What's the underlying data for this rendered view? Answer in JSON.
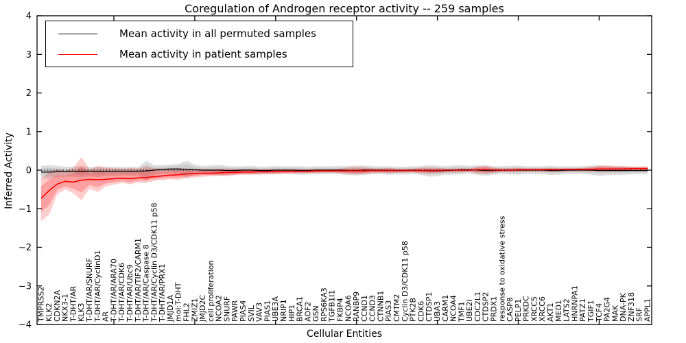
{
  "figure": {
    "title": "Coregulation of Androgen receptor activity -- 259 samples",
    "background": "#ffffff"
  },
  "chart_data": {
    "type": "line",
    "title": "Coregulation of Androgen receptor activity -- 259 samples",
    "xlabel": "Cellular Entities",
    "ylabel": "Inferred Activity",
    "ylim": [
      -4,
      4
    ],
    "yticks": [
      4,
      3,
      2,
      1,
      0,
      -1,
      -2,
      -3,
      -4
    ],
    "xtick_interval": 10,
    "grid": false,
    "legend": {
      "position": "upper left",
      "entries": [
        {
          "label": "Mean activity in all permuted samples",
          "color": "#000000"
        },
        {
          "label": "Mean activity in patient samples",
          "color": "#ff0000"
        }
      ]
    },
    "zero_line": {
      "style": "dotted",
      "color": "#000000",
      "y": 0
    },
    "colors": {
      "permuted_line": "#000000",
      "permuted_band": "#d9d9d9",
      "patient_line": "#ff0000",
      "patient_band": "#f6a9a5",
      "axes": "#000000"
    },
    "categories": [
      "TMPRSS2",
      "KLK2",
      "CDKN2A",
      "NKX3-1",
      "T-DHT/AR",
      "KLK3",
      "T-DHT/AR/SNURF",
      "T-DHT/AR/CyclinD1",
      "AR",
      "T-DHT/AR/ARA70",
      "T-DHT/AR/CDK6",
      "T-DHT/AR/Ubc9",
      "T-DHT/AR/TIF2/CARM1",
      "T-DHT/AR/Caspase 8",
      "T-DHT/AR/Cyclin D3/CDK11 p58",
      "T-DHT/AR/PRX1",
      "JMJD1A",
      "mol:T-DHT",
      "FHL2",
      "ZMIZ1",
      "JMJD2C",
      "cell proliferation",
      "NCOA2",
      "SNURF",
      "PAWR",
      "PIAS4",
      "SVIL",
      "VAV3",
      "PIAS1",
      "UBE3A",
      "NRIP1",
      "HIP1",
      "BRCA1",
      "AOF2",
      "GSN",
      "RPS6KA3",
      "TGFB1I1",
      "FKBP4",
      "NCOA6",
      "RANBP9",
      "CCND1",
      "CCND3",
      "CTNNB1",
      "PIAS3",
      "CMTM2",
      "Cyclin D3/CDK11 p58",
      "PTK2B",
      "CDK6",
      "CTDSP1",
      "UBA3",
      "CARM1",
      "NCOA4",
      "TMF1",
      "UBE2I",
      "CDC2L1",
      "CTDSP2",
      "PRDX1",
      "response to oxidative stress",
      "CASP8",
      "PELP1",
      "PRKDC",
      "XRCC5",
      "XRCC6",
      "AKT1",
      "MED1",
      "LATS2",
      "HNRNPA1",
      "PATZ1",
      "TGIF1",
      "TCF4",
      "PA2G4",
      "MAK",
      "DNA-PK",
      "ZNF318",
      "SRF",
      "APPL1"
    ],
    "series": [
      {
        "name": "Mean activity in all permuted samples",
        "color": "#000000",
        "values": [
          -0.05,
          -0.05,
          -0.04,
          -0.04,
          -0.04,
          -0.04,
          -0.04,
          -0.04,
          -0.03,
          -0.03,
          -0.03,
          -0.03,
          -0.03,
          -0.02,
          0.0,
          0.02,
          0.03,
          0.03,
          0.02,
          0.01,
          0.0,
          0.0,
          0.0,
          -0.01,
          -0.01,
          0.0,
          0.0,
          -0.01,
          -0.01,
          0.0,
          0.0,
          0.0,
          -0.01,
          -0.01,
          0.0,
          0.0,
          0.0,
          0.0,
          -0.01,
          -0.01,
          0.0,
          0.0,
          0.0,
          -0.01,
          -0.01,
          -0.01,
          0.0,
          -0.01,
          -0.02,
          -0.02,
          -0.01,
          0.0,
          0.01,
          0.01,
          0.0,
          -0.01,
          -0.01,
          0.0,
          0.0,
          0.0,
          0.0,
          0.0,
          0.0,
          -0.01,
          -0.01,
          0.0,
          0.0,
          0.0,
          0.0,
          -0.01,
          -0.01,
          -0.01,
          -0.01,
          -0.01,
          -0.01,
          -0.01
        ],
        "band_half_width": [
          0.16,
          0.18,
          0.15,
          0.13,
          0.13,
          0.15,
          0.12,
          0.14,
          0.12,
          0.12,
          0.11,
          0.12,
          0.11,
          0.26,
          0.13,
          0.11,
          0.12,
          0.13,
          0.22,
          0.13,
          0.11,
          0.12,
          0.14,
          0.12,
          0.11,
          0.1,
          0.11,
          0.1,
          0.1,
          0.11,
          0.1,
          0.1,
          0.11,
          0.1,
          0.1,
          0.1,
          0.1,
          0.11,
          0.12,
          0.13,
          0.12,
          0.1,
          0.1,
          0.11,
          0.1,
          0.1,
          0.1,
          0.12,
          0.15,
          0.14,
          0.11,
          0.12,
          0.12,
          0.1,
          0.13,
          0.14,
          0.11,
          0.1,
          0.11,
          0.12,
          0.1,
          0.1,
          0.1,
          0.12,
          0.11,
          0.1,
          0.1,
          0.1,
          0.12,
          0.14,
          0.12,
          0.11,
          0.11,
          0.1,
          0.09,
          0.09
        ]
      },
      {
        "name": "Mean activity in patient samples",
        "color": "#ff0000",
        "values": [
          -0.73,
          -0.53,
          -0.36,
          -0.29,
          -0.31,
          -0.26,
          -0.24,
          -0.25,
          -0.24,
          -0.22,
          -0.21,
          -0.22,
          -0.2,
          -0.19,
          -0.17,
          -0.15,
          -0.13,
          -0.12,
          -0.1,
          -0.09,
          -0.08,
          -0.08,
          -0.07,
          -0.06,
          -0.06,
          -0.05,
          -0.05,
          -0.04,
          -0.04,
          -0.04,
          -0.03,
          -0.03,
          -0.03,
          -0.03,
          -0.02,
          -0.02,
          -0.02,
          -0.02,
          -0.02,
          -0.02,
          -0.02,
          -0.01,
          -0.01,
          -0.01,
          -0.01,
          -0.01,
          -0.01,
          -0.01,
          -0.01,
          -0.01,
          0.0,
          0.0,
          0.0,
          0.0,
          0.01,
          0.01,
          0.0,
          0.0,
          0.0,
          0.01,
          0.01,
          0.01,
          0.01,
          0.01,
          0.01,
          0.02,
          0.02,
          0.02,
          0.02,
          0.03,
          0.03,
          0.03,
          0.03,
          0.04,
          0.04,
          0.04
        ],
        "band_low": [
          -1.32,
          -1.15,
          -0.62,
          -0.5,
          -0.6,
          -0.78,
          -0.48,
          -0.57,
          -0.42,
          -0.38,
          -0.33,
          -0.37,
          -0.32,
          -0.33,
          -0.28,
          -0.26,
          -0.24,
          -0.25,
          -0.21,
          -0.19,
          -0.17,
          -0.16,
          -0.15,
          -0.16,
          -0.13,
          -0.12,
          -0.12,
          -0.11,
          -0.1,
          -0.1,
          -0.09,
          -0.09,
          -0.08,
          -0.08,
          -0.08,
          -0.07,
          -0.07,
          -0.08,
          -0.1,
          -0.11,
          -0.1,
          -0.08,
          -0.07,
          -0.08,
          -0.07,
          -0.06,
          -0.06,
          -0.08,
          -0.09,
          -0.08,
          -0.06,
          -0.06,
          -0.06,
          -0.05,
          -0.08,
          -0.1,
          -0.07,
          -0.05,
          -0.05,
          -0.05,
          -0.04,
          -0.04,
          -0.04,
          -0.05,
          -0.04,
          -0.04,
          -0.03,
          -0.03,
          -0.04,
          -0.05,
          -0.04,
          -0.04,
          -0.04,
          -0.02,
          -0.02,
          -0.02
        ],
        "band_high": [
          -0.22,
          -0.05,
          0.02,
          -0.02,
          0.06,
          0.34,
          0.02,
          0.1,
          0.06,
          0.05,
          0.04,
          0.05,
          0.04,
          0.09,
          0.05,
          0.04,
          0.04,
          0.05,
          0.04,
          0.03,
          0.03,
          0.03,
          0.04,
          0.04,
          0.03,
          0.03,
          0.03,
          0.03,
          0.03,
          0.03,
          0.03,
          0.03,
          0.03,
          0.03,
          0.03,
          0.03,
          0.03,
          0.04,
          0.07,
          0.08,
          0.07,
          0.05,
          0.04,
          0.06,
          0.04,
          0.04,
          0.04,
          0.06,
          0.07,
          0.06,
          0.04,
          0.04,
          0.05,
          0.04,
          0.09,
          0.11,
          0.07,
          0.05,
          0.05,
          0.06,
          0.05,
          0.05,
          0.05,
          0.06,
          0.05,
          0.05,
          0.05,
          0.06,
          0.08,
          0.11,
          0.12,
          0.11,
          0.1,
          0.09,
          0.09,
          0.1
        ]
      }
    ]
  }
}
